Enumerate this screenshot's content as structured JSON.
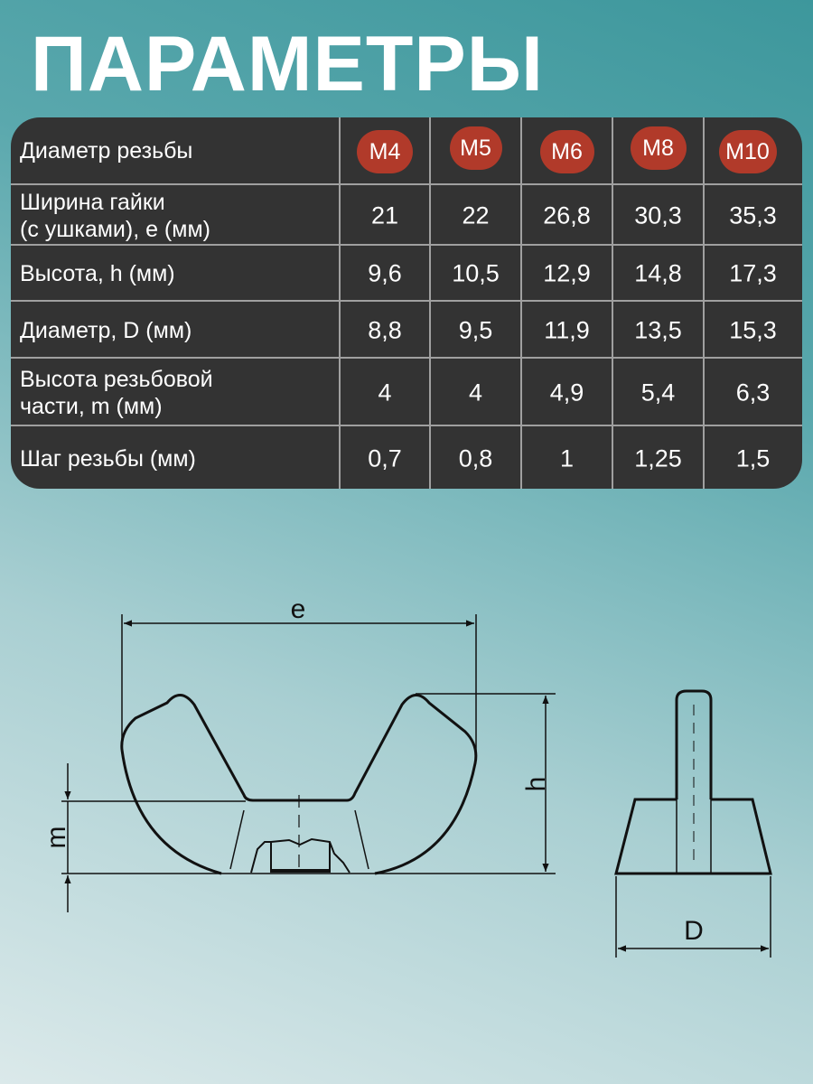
{
  "title": "ПАРАМЕТРЫ",
  "accent_color": "#b13a2a",
  "table": {
    "header": {
      "label": "Диаметр резьбы",
      "sizes": [
        "М4",
        "М5",
        "М6",
        "М8",
        "М10"
      ]
    },
    "rows": [
      {
        "label": "Ширина гайки\n(с ушками), е (мм)",
        "values": [
          "21",
          "22",
          "26,8",
          "30,3",
          "35,3"
        ]
      },
      {
        "label": "Высота, h (мм)",
        "values": [
          "9,6",
          "10,5",
          "12,9",
          "14,8",
          "17,3"
        ]
      },
      {
        "label": "Диаметр, D (мм)",
        "values": [
          "8,8",
          "9,5",
          "11,9",
          "13,5",
          "15,3"
        ]
      },
      {
        "label": "Высота резьбовой\nчасти, m (мм)",
        "values": [
          "4",
          "4",
          "4,9",
          "5,4",
          "6,3"
        ]
      },
      {
        "label": "Шаг резьбы (мм)",
        "values": [
          "0,7",
          "0,8",
          "1",
          "1,25",
          "1,5"
        ]
      }
    ]
  },
  "drawing": {
    "e": "e",
    "h": "h",
    "m": "m",
    "D": "D"
  }
}
